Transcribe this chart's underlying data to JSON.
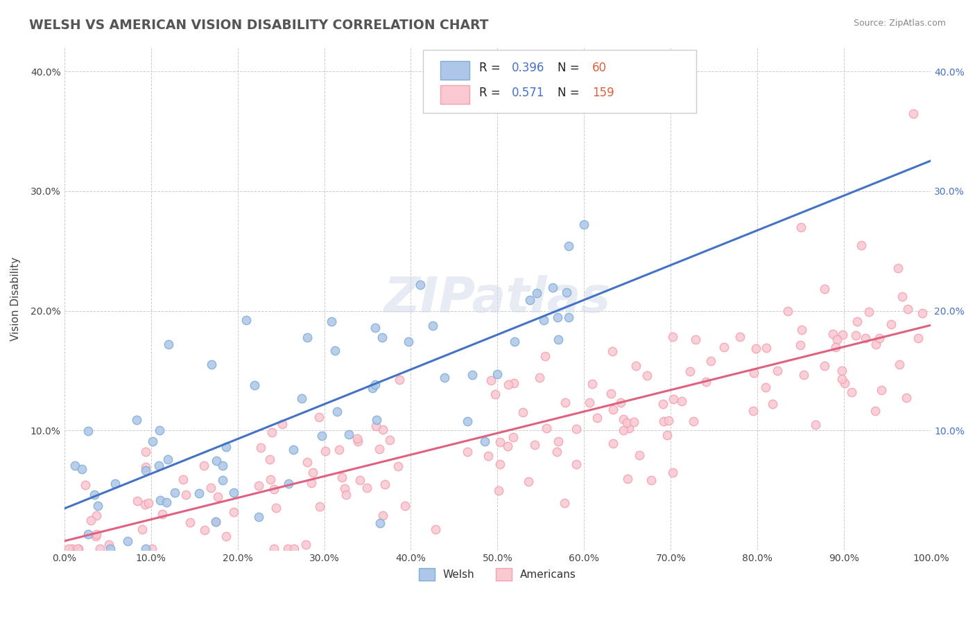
{
  "title": "WELSH VS AMERICAN VISION DISABILITY CORRELATION CHART",
  "source": "Source: ZipAtlas.com",
  "ylabel": "Vision Disability",
  "xlabel": "",
  "welsh_R": 0.396,
  "welsh_N": 60,
  "american_R": 0.571,
  "american_N": 159,
  "welsh_color": "#7bafd4",
  "welsh_fill": "#aec6e8",
  "american_color": "#f4a0b0",
  "american_fill": "#f9c8d0",
  "line_welsh": "#4472c4",
  "line_american": "#e06080",
  "xmin": 0.0,
  "xmax": 1.0,
  "ymin": 0.0,
  "ymax": 0.42,
  "x_ticks": [
    0.0,
    0.1,
    0.2,
    0.3,
    0.4,
    0.5,
    0.6,
    0.7,
    0.8,
    0.9,
    1.0
  ],
  "x_tick_labels": [
    "0.0%",
    "10.0%",
    "20.0%",
    "30.0%",
    "40.0%",
    "50.0%",
    "60.0%",
    "70.0%",
    "80.0%",
    "90.0%",
    "100.0%"
  ],
  "y_ticks": [
    0.0,
    0.1,
    0.2,
    0.3,
    0.4
  ],
  "y_tick_labels": [
    "",
    "10.0%",
    "20.0%",
    "30.0%",
    "40.0%"
  ],
  "right_y_ticks": [
    0.1,
    0.2,
    0.3,
    0.4
  ],
  "right_y_tick_labels": [
    "10.0%",
    "20.0%",
    "30.0%",
    "40.0%"
  ],
  "watermark": "ZIPatlas",
  "background_color": "#ffffff",
  "grid_color": "#cccccc"
}
